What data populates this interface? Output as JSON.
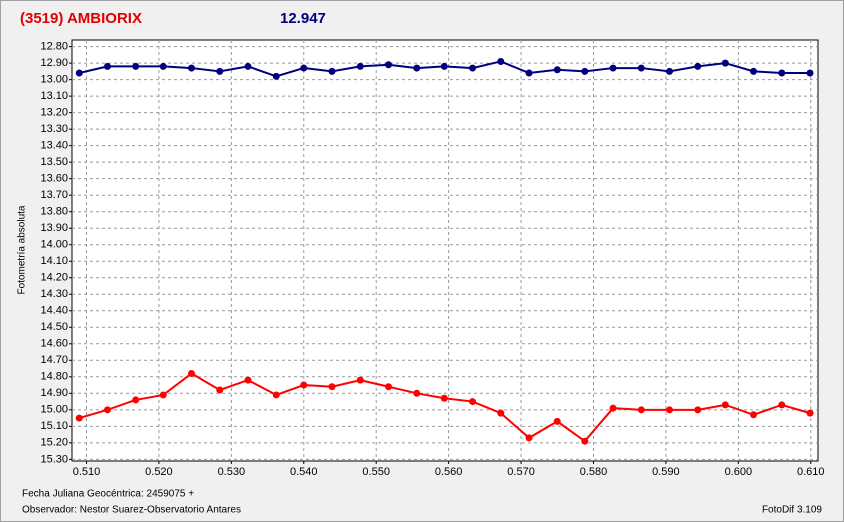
{
  "chart_data": {
    "type": "line",
    "title": "(3519) AMBIORIX",
    "subtitle": "12.947",
    "y_label": "Fotometría absoluta",
    "footer_left_1": "Fecha Juliana Geocéntrica: 2459075 +",
    "footer_left_2": "Observador: Nestor Suarez-Observatorio Antares",
    "footer_right": "FotoDif 3.109",
    "x": [
      0.509,
      0.5129,
      0.5168,
      0.5206,
      0.5245,
      0.5284,
      0.5323,
      0.5362,
      0.54,
      0.5439,
      0.5478,
      0.5517,
      0.5556,
      0.5594,
      0.5633,
      0.5672,
      0.5711,
      0.575,
      0.5788,
      0.5827,
      0.5866,
      0.5905,
      0.5944,
      0.5982,
      0.6021,
      0.606,
      0.6099
    ],
    "series": [
      {
        "color": "#00007f",
        "values": [
          12.96,
          12.92,
          12.92,
          12.92,
          12.93,
          12.95,
          12.92,
          12.98,
          12.93,
          12.95,
          12.92,
          12.91,
          12.93,
          12.92,
          12.93,
          12.89,
          12.96,
          12.94,
          12.95,
          12.93,
          12.93,
          12.95,
          12.92,
          12.9,
          12.95,
          12.96,
          12.96
        ]
      },
      {
        "color": "#ff0000",
        "values": [
          15.05,
          15.0,
          14.94,
          14.91,
          14.78,
          14.88,
          14.82,
          14.91,
          14.85,
          14.86,
          14.82,
          14.86,
          14.9,
          14.93,
          14.95,
          15.02,
          15.17,
          15.07,
          15.19,
          14.99,
          15.0,
          15.0,
          15.0,
          14.97,
          15.03,
          14.97,
          15.02
        ]
      }
    ],
    "xlim": [
      0.508,
      0.611
    ],
    "ylim": [
      12.76,
      15.31
    ],
    "y_inverted": true,
    "grid": true,
    "xticks": [
      {
        "value": 0.51,
        "label": "0.510"
      },
      {
        "value": 0.52,
        "label": "0.520"
      },
      {
        "value": 0.53,
        "label": "0.530"
      },
      {
        "value": 0.54,
        "label": "0.540"
      },
      {
        "value": 0.55,
        "label": "0.550"
      },
      {
        "value": 0.56,
        "label": "0.560"
      },
      {
        "value": 0.57,
        "label": "0.570"
      },
      {
        "value": 0.58,
        "label": "0.580"
      },
      {
        "value": 0.59,
        "label": "0.590"
      },
      {
        "value": 0.6,
        "label": "0.600"
      },
      {
        "value": 0.61,
        "label": "0.610"
      }
    ],
    "yticks": [
      {
        "value": 12.8,
        "label": "12.80"
      },
      {
        "value": 12.9,
        "label": "12.90"
      },
      {
        "value": 13.0,
        "label": "13.00"
      },
      {
        "value": 13.1,
        "label": "13.10"
      },
      {
        "value": 13.2,
        "label": "13.20"
      },
      {
        "value": 13.3,
        "label": "13.30"
      },
      {
        "value": 13.4,
        "label": "13.40"
      },
      {
        "value": 13.5,
        "label": "13.50"
      },
      {
        "value": 13.6,
        "label": "13.60"
      },
      {
        "value": 13.7,
        "label": "13.70"
      },
      {
        "value": 13.8,
        "label": "13.80"
      },
      {
        "value": 13.9,
        "label": "13.90"
      },
      {
        "value": 14.0,
        "label": "14.00"
      },
      {
        "value": 14.1,
        "label": "14.10"
      },
      {
        "value": 14.2,
        "label": "14.20"
      },
      {
        "value": 14.3,
        "label": "14.30"
      },
      {
        "value": 14.4,
        "label": "14.40"
      },
      {
        "value": 14.5,
        "label": "14.50"
      },
      {
        "value": 14.6,
        "label": "14.60"
      },
      {
        "value": 14.7,
        "label": "14.70"
      },
      {
        "value": 14.8,
        "label": "14.80"
      },
      {
        "value": 14.9,
        "label": "14.90"
      },
      {
        "value": 15.0,
        "label": "15.00"
      },
      {
        "value": 15.1,
        "label": "15.10"
      },
      {
        "value": 15.2,
        "label": "15.20"
      },
      {
        "value": 15.3,
        "label": "15.30"
      }
    ]
  }
}
